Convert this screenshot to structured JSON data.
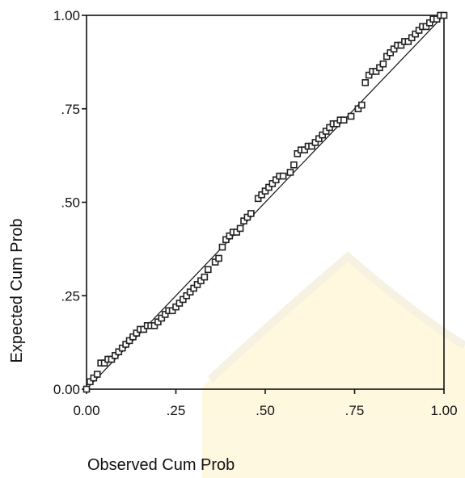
{
  "chart_data": {
    "type": "scatter",
    "title": "",
    "xlabel": "Observed Cum Prob",
    "ylabel": "Expected Cum Prob",
    "xlim": [
      0,
      1
    ],
    "ylim": [
      0,
      1
    ],
    "grid": false,
    "legend": "none",
    "x_ticks": [
      {
        "value": 0.0,
        "label": "0.00"
      },
      {
        "value": 0.25,
        "label": ".25"
      },
      {
        "value": 0.5,
        "label": ".50"
      },
      {
        "value": 0.75,
        "label": ".75"
      },
      {
        "value": 1.0,
        "label": "1.00"
      }
    ],
    "y_ticks": [
      {
        "value": 0.0,
        "label": "0.00"
      },
      {
        "value": 0.25,
        "label": ".25"
      },
      {
        "value": 0.5,
        "label": ".50"
      },
      {
        "value": 0.75,
        "label": ".75"
      },
      {
        "value": 1.0,
        "label": "1.00"
      }
    ],
    "points": [
      [
        0.0,
        0.0
      ],
      [
        0.01,
        0.02
      ],
      [
        0.02,
        0.03
      ],
      [
        0.03,
        0.04
      ],
      [
        0.04,
        0.07
      ],
      [
        0.05,
        0.07
      ],
      [
        0.06,
        0.08
      ],
      [
        0.07,
        0.08
      ],
      [
        0.08,
        0.09
      ],
      [
        0.09,
        0.1
      ],
      [
        0.1,
        0.11
      ],
      [
        0.11,
        0.12
      ],
      [
        0.12,
        0.13
      ],
      [
        0.13,
        0.14
      ],
      [
        0.14,
        0.15
      ],
      [
        0.15,
        0.16
      ],
      [
        0.16,
        0.16
      ],
      [
        0.17,
        0.17
      ],
      [
        0.18,
        0.17
      ],
      [
        0.19,
        0.17
      ],
      [
        0.2,
        0.18
      ],
      [
        0.21,
        0.19
      ],
      [
        0.22,
        0.2
      ],
      [
        0.23,
        0.21
      ],
      [
        0.24,
        0.21
      ],
      [
        0.25,
        0.22
      ],
      [
        0.26,
        0.23
      ],
      [
        0.27,
        0.24
      ],
      [
        0.28,
        0.25
      ],
      [
        0.29,
        0.26
      ],
      [
        0.3,
        0.27
      ],
      [
        0.31,
        0.28
      ],
      [
        0.32,
        0.29
      ],
      [
        0.33,
        0.3
      ],
      [
        0.34,
        0.32
      ],
      [
        0.36,
        0.34
      ],
      [
        0.37,
        0.35
      ],
      [
        0.38,
        0.38
      ],
      [
        0.39,
        0.4
      ],
      [
        0.4,
        0.41
      ],
      [
        0.41,
        0.42
      ],
      [
        0.42,
        0.42
      ],
      [
        0.43,
        0.43
      ],
      [
        0.44,
        0.45
      ],
      [
        0.45,
        0.46
      ],
      [
        0.46,
        0.47
      ],
      [
        0.48,
        0.51
      ],
      [
        0.49,
        0.52
      ],
      [
        0.5,
        0.53
      ],
      [
        0.51,
        0.54
      ],
      [
        0.52,
        0.55
      ],
      [
        0.53,
        0.56
      ],
      [
        0.54,
        0.57
      ],
      [
        0.55,
        0.57
      ],
      [
        0.57,
        0.58
      ],
      [
        0.58,
        0.6
      ],
      [
        0.59,
        0.63
      ],
      [
        0.6,
        0.64
      ],
      [
        0.61,
        0.64
      ],
      [
        0.62,
        0.65
      ],
      [
        0.63,
        0.65
      ],
      [
        0.64,
        0.66
      ],
      [
        0.65,
        0.67
      ],
      [
        0.66,
        0.68
      ],
      [
        0.67,
        0.69
      ],
      [
        0.68,
        0.7
      ],
      [
        0.69,
        0.71
      ],
      [
        0.7,
        0.71
      ],
      [
        0.71,
        0.72
      ],
      [
        0.72,
        0.72
      ],
      [
        0.74,
        0.73
      ],
      [
        0.76,
        0.75
      ],
      [
        0.77,
        0.76
      ],
      [
        0.78,
        0.82
      ],
      [
        0.79,
        0.84
      ],
      [
        0.8,
        0.85
      ],
      [
        0.81,
        0.85
      ],
      [
        0.82,
        0.86
      ],
      [
        0.83,
        0.87
      ],
      [
        0.84,
        0.89
      ],
      [
        0.85,
        0.9
      ],
      [
        0.86,
        0.91
      ],
      [
        0.87,
        0.92
      ],
      [
        0.88,
        0.92
      ],
      [
        0.89,
        0.93
      ],
      [
        0.9,
        0.93
      ],
      [
        0.91,
        0.94
      ],
      [
        0.92,
        0.95
      ],
      [
        0.93,
        0.96
      ],
      [
        0.94,
        0.97
      ],
      [
        0.95,
        0.97
      ],
      [
        0.96,
        0.98
      ],
      [
        0.97,
        0.99
      ],
      [
        0.98,
        0.99
      ],
      [
        0.99,
        1.0
      ],
      [
        1.0,
        1.0
      ]
    ]
  }
}
